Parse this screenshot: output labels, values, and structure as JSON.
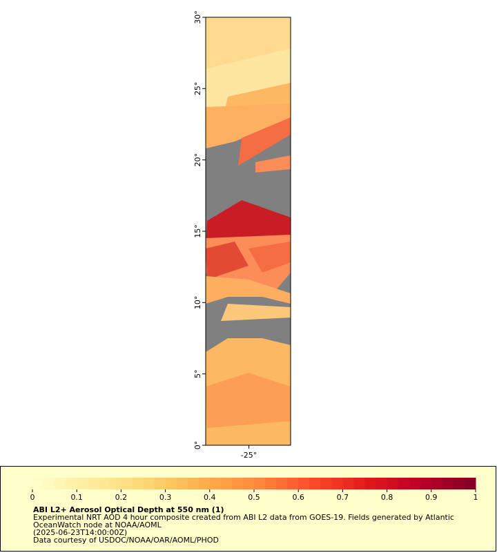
{
  "map": {
    "lat_ticks": [
      {
        "value": 0,
        "label": "0°"
      },
      {
        "value": 5,
        "label": "5°"
      },
      {
        "value": 10,
        "label": "10°"
      },
      {
        "value": 15,
        "label": "15°"
      },
      {
        "value": 20,
        "label": "20°"
      },
      {
        "value": 25,
        "label": "25°"
      },
      {
        "value": 30,
        "label": "30°"
      }
    ],
    "lat_lim": [
      0,
      30
    ],
    "lon_ticks": [
      {
        "value": -25,
        "label": "-25°"
      }
    ],
    "lon_lim": [
      -28,
      -22.1
    ]
  },
  "colorbar": {
    "lim": [
      0,
      1
    ],
    "ticks": [
      0,
      0.1,
      0.2,
      0.3,
      0.4,
      0.5,
      0.6,
      0.7,
      0.8,
      0.9,
      1
    ],
    "colormap": [
      "#ffffcc",
      "#ffeda0",
      "#fed976",
      "#feb24c",
      "#fd8d3c",
      "#fc4e2a",
      "#e31a1c",
      "#bd0026",
      "#800026"
    ]
  },
  "legend": {
    "title": "ABI L2+ Aerosol Optical Depth at 550 nm (1)",
    "lines": [
      "Experimental NRT AOD 4 hour composite created from ABI L2 data from GOES-19. Fields generated by Atlantic",
      "OceanWatch node at NOAA/AOML",
      "(2025-06-23T14:00:00Z)",
      "Data courtesy of USDOC/NOAA/OAR/AOML/PHOD"
    ]
  }
}
